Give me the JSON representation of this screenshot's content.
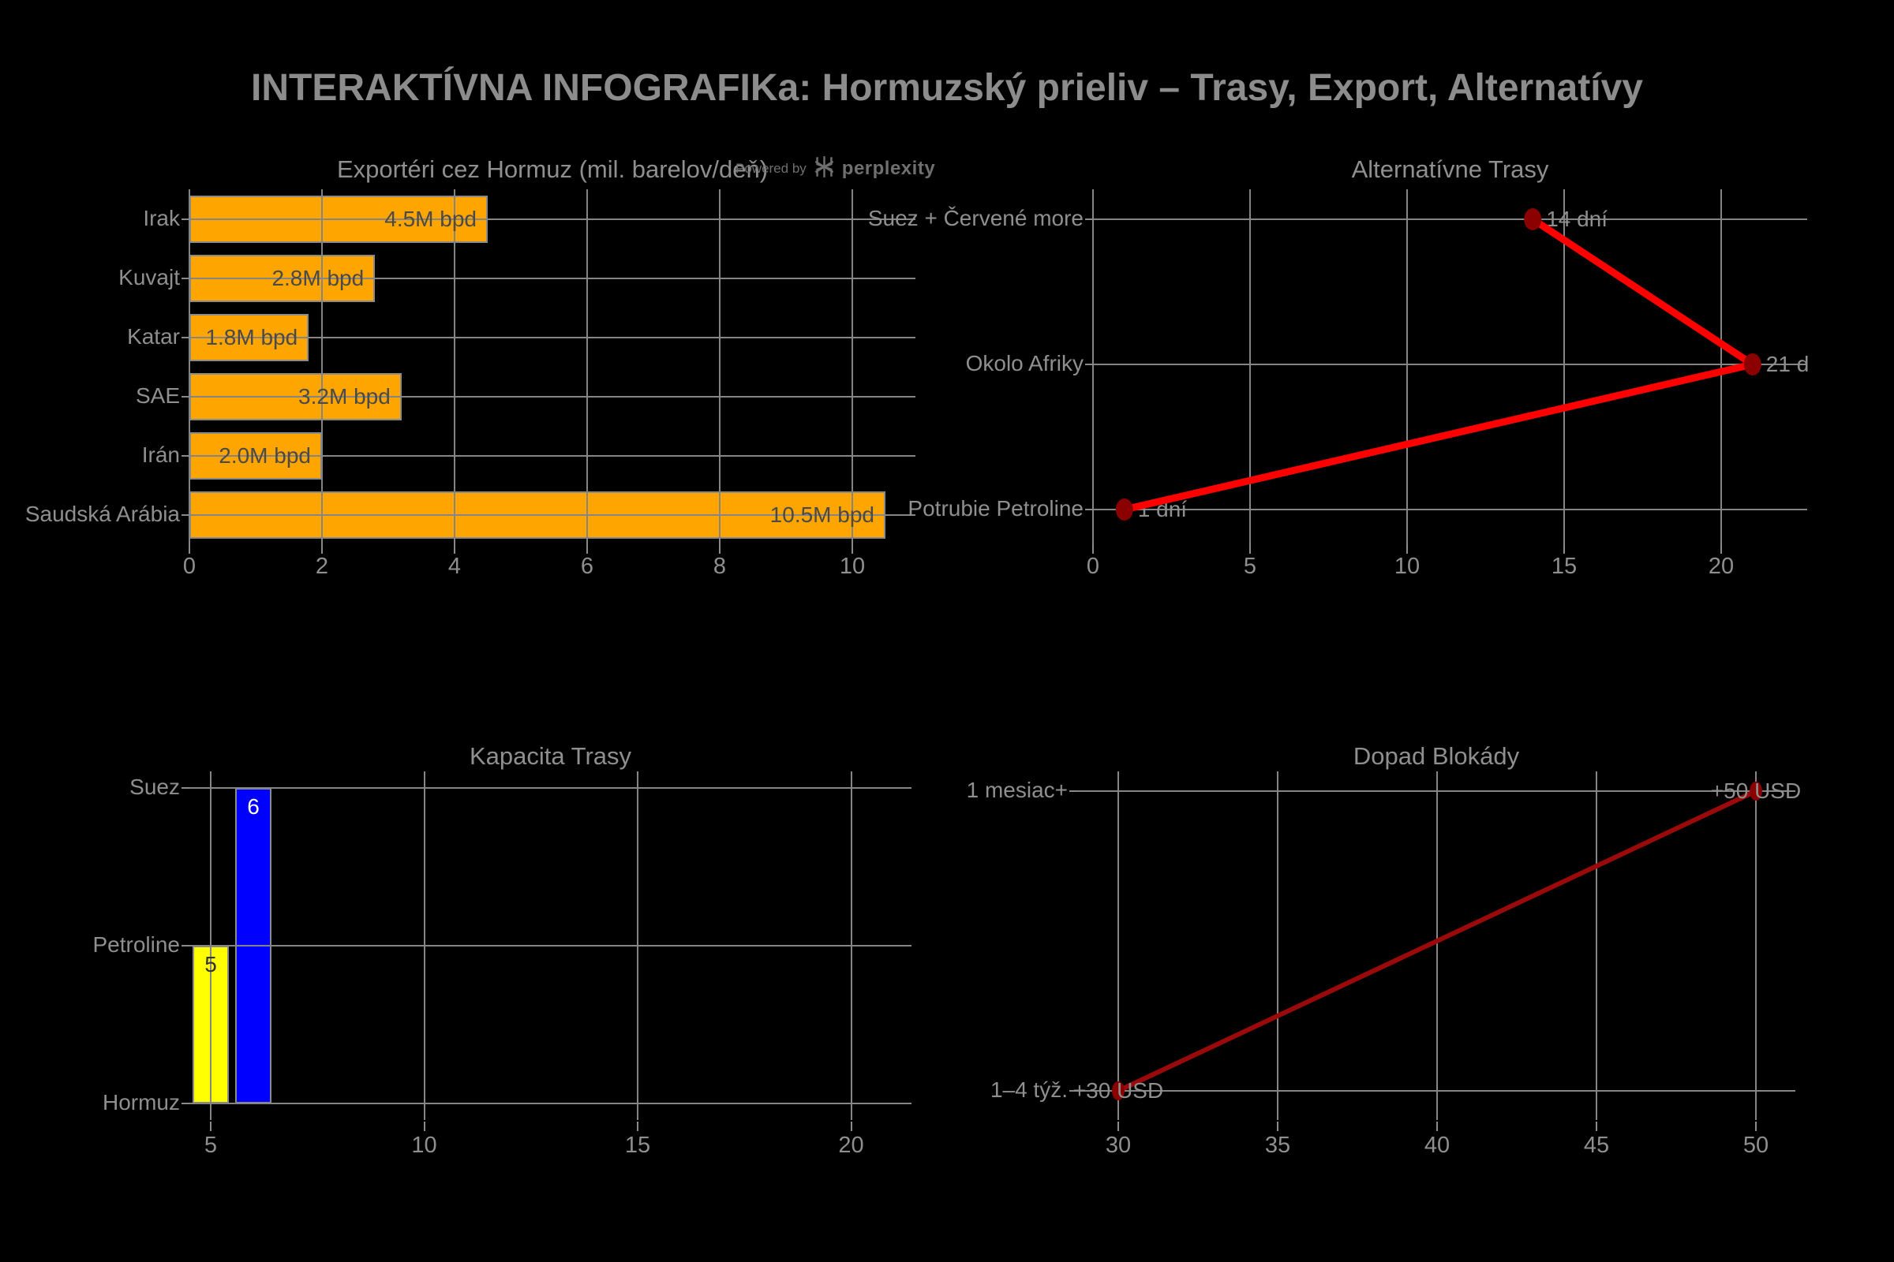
{
  "page": {
    "title": "INTERAKTÍVNA INFOGRAFIKa: Hormuzský prieliv – Trasy, Export, Alternatívy",
    "background_color": "#000000",
    "text_color": "#8f8f8f",
    "grid_color": "#858585",
    "watermark": {
      "prefix": "Powered by",
      "brand": "perplexity"
    }
  },
  "chart_data": [
    {
      "id": "exporters",
      "type": "bar",
      "orientation": "horizontal",
      "title": "Exportéri cez Hormuz (mil. barelov/deň)",
      "categories": [
        "Irak",
        "Kuvajt",
        "Katar",
        "SAE",
        "Irán",
        "Saudská Arábia"
      ],
      "values": [
        4.5,
        2.8,
        1.8,
        3.2,
        2.0,
        10.5
      ],
      "bar_labels": [
        "4.5M bpd",
        "2.8M bpd",
        "1.8M bpd",
        "3.2M bpd",
        "2.0M bpd",
        "10.5M bpd"
      ],
      "xticks": [
        0,
        2,
        4,
        6,
        8,
        10
      ],
      "xlim": [
        0,
        10.95
      ],
      "bar_color": "#FFA500",
      "bar_label_color": "#4a4a4a",
      "grid": true,
      "legend": false
    },
    {
      "id": "alternative-routes",
      "type": "line",
      "title": "Alternatívne Trasy",
      "categories": [
        "Suez + Červené more",
        "Okolo Afriky",
        "Potrubie Petroline"
      ],
      "x": [
        14,
        21,
        1
      ],
      "point_labels": [
        "14 dní",
        "21 d",
        "1 dní"
      ],
      "xticks": [
        0,
        5,
        10,
        15,
        20
      ],
      "xlim": [
        0,
        22.7
      ],
      "line_color": "#FF0000",
      "line_width": 9,
      "marker_color": "#8B0000",
      "grid": true,
      "legend": false
    },
    {
      "id": "route-capacity",
      "type": "bar",
      "orientation": "vertical",
      "title": "Kapacita Trasy",
      "categories": [
        "Suez",
        "Petroline",
        "Hormuz"
      ],
      "bars": [
        {
          "x": 5,
          "top_category": "Petroline",
          "label": "5",
          "color": "#FFFF00",
          "label_color": "#333333"
        },
        {
          "x": 6,
          "top_category": "Suez",
          "label": "6",
          "color": "#0000FF",
          "label_color": "#FFFFFF"
        }
      ],
      "xticks": [
        5,
        10,
        15,
        20
      ],
      "xlim": [
        4.5,
        21.4
      ],
      "grid": true,
      "legend": false
    },
    {
      "id": "blockade-impact",
      "type": "line",
      "title": "Dopad Blokády",
      "categories": [
        "1 mesiac+",
        "1–4 týž."
      ],
      "x": [
        50,
        30
      ],
      "point_labels": [
        "+50 USD",
        "+30 USD"
      ],
      "xticks": [
        30,
        35,
        40,
        45,
        50
      ],
      "xlim": [
        28.7,
        51.2
      ],
      "line_color": "#9B0A0A",
      "line_width": 6,
      "marker_color": "#8B0000",
      "grid": true,
      "legend": false
    }
  ]
}
